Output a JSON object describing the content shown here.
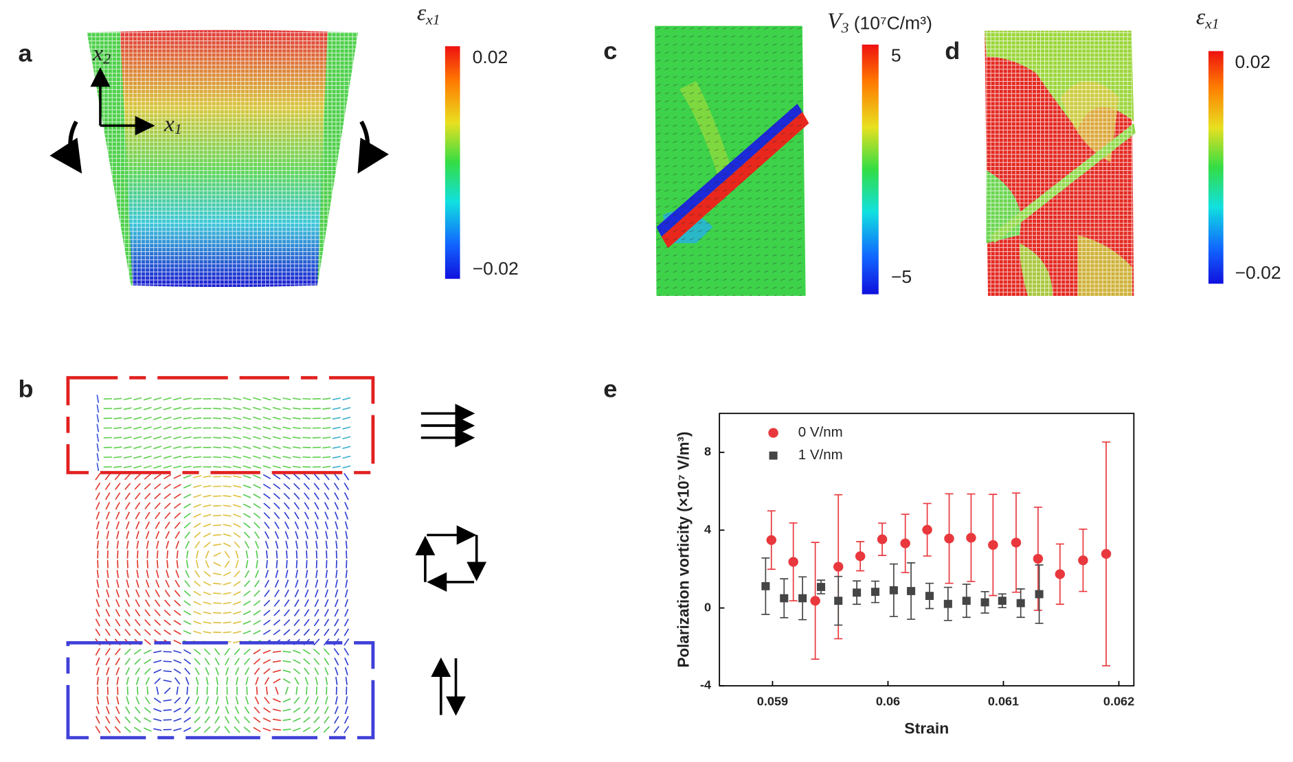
{
  "panels": {
    "a": {
      "letter": "a",
      "colorbar": {
        "symbol": "ε",
        "subscript": "x1",
        "max_label": "0.02",
        "min_label": "−0.02"
      },
      "axes": [
        {
          "symbol": "x",
          "subscript": "2"
        },
        {
          "symbol": "x",
          "subscript": "1"
        }
      ]
    },
    "b": {
      "letter": "b"
    },
    "c": {
      "letter": "c",
      "colorbar": {
        "symbol": "V",
        "subscript": "3",
        "unit": "(10⁷C/m³)",
        "max_label": "5",
        "min_label": "−5"
      }
    },
    "d": {
      "letter": "d",
      "colorbar": {
        "symbol": "ε",
        "subscript": "x1",
        "max_label": "0.02",
        "min_label": "−0.02"
      }
    },
    "e": {
      "letter": "e"
    }
  },
  "chart_data": {
    "type": "scatter",
    "x_label": "Strain",
    "y_label": "Polarization  vorticity (×10⁷ V/m³)",
    "xlim": [
      0.05854,
      0.06213
    ],
    "ylim": [
      -4,
      10
    ],
    "xticks": [
      0.059,
      0.06,
      0.061,
      0.062
    ],
    "yticks": [
      -4,
      0,
      4,
      8
    ],
    "series": [
      {
        "name": "0 V/nm",
        "color": "#e8383d",
        "marker": "circle",
        "x": [
          0.05899,
          0.05918,
          0.05937,
          0.05957,
          0.05976,
          0.05995,
          0.06015,
          0.06034,
          0.06053,
          0.06072,
          0.06091,
          0.06111,
          0.0613,
          0.06149,
          0.06169,
          0.06189
        ],
        "values": [
          3.49,
          2.37,
          0.37,
          2.12,
          2.66,
          3.53,
          3.32,
          4.02,
          3.57,
          3.61,
          3.24,
          3.36,
          2.53,
          1.74,
          2.45,
          2.78
        ],
        "errors": [
          1.5,
          2.0,
          3.0,
          3.7,
          0.75,
          0.83,
          1.5,
          1.35,
          2.3,
          2.25,
          2.6,
          2.55,
          2.65,
          1.55,
          1.6,
          5.75
        ]
      },
      {
        "name": "1 V/nm",
        "color": "#454545",
        "marker": "square",
        "x": [
          0.05894,
          0.0591,
          0.05926,
          0.05942,
          0.05957,
          0.05973,
          0.05989,
          0.06005,
          0.0602,
          0.06036,
          0.06052,
          0.06068,
          0.06084,
          0.06099,
          0.06115,
          0.06131
        ],
        "values": [
          1.12,
          0.5,
          0.5,
          1.08,
          0.37,
          0.79,
          0.83,
          0.91,
          0.87,
          0.62,
          0.21,
          0.37,
          0.29,
          0.37,
          0.25,
          0.71
        ],
        "errors": [
          1.45,
          1.0,
          1.1,
          0.35,
          1.25,
          0.6,
          0.55,
          1.35,
          1.45,
          0.65,
          0.85,
          0.85,
          0.55,
          0.35,
          0.73,
          1.5
        ]
      }
    ]
  }
}
